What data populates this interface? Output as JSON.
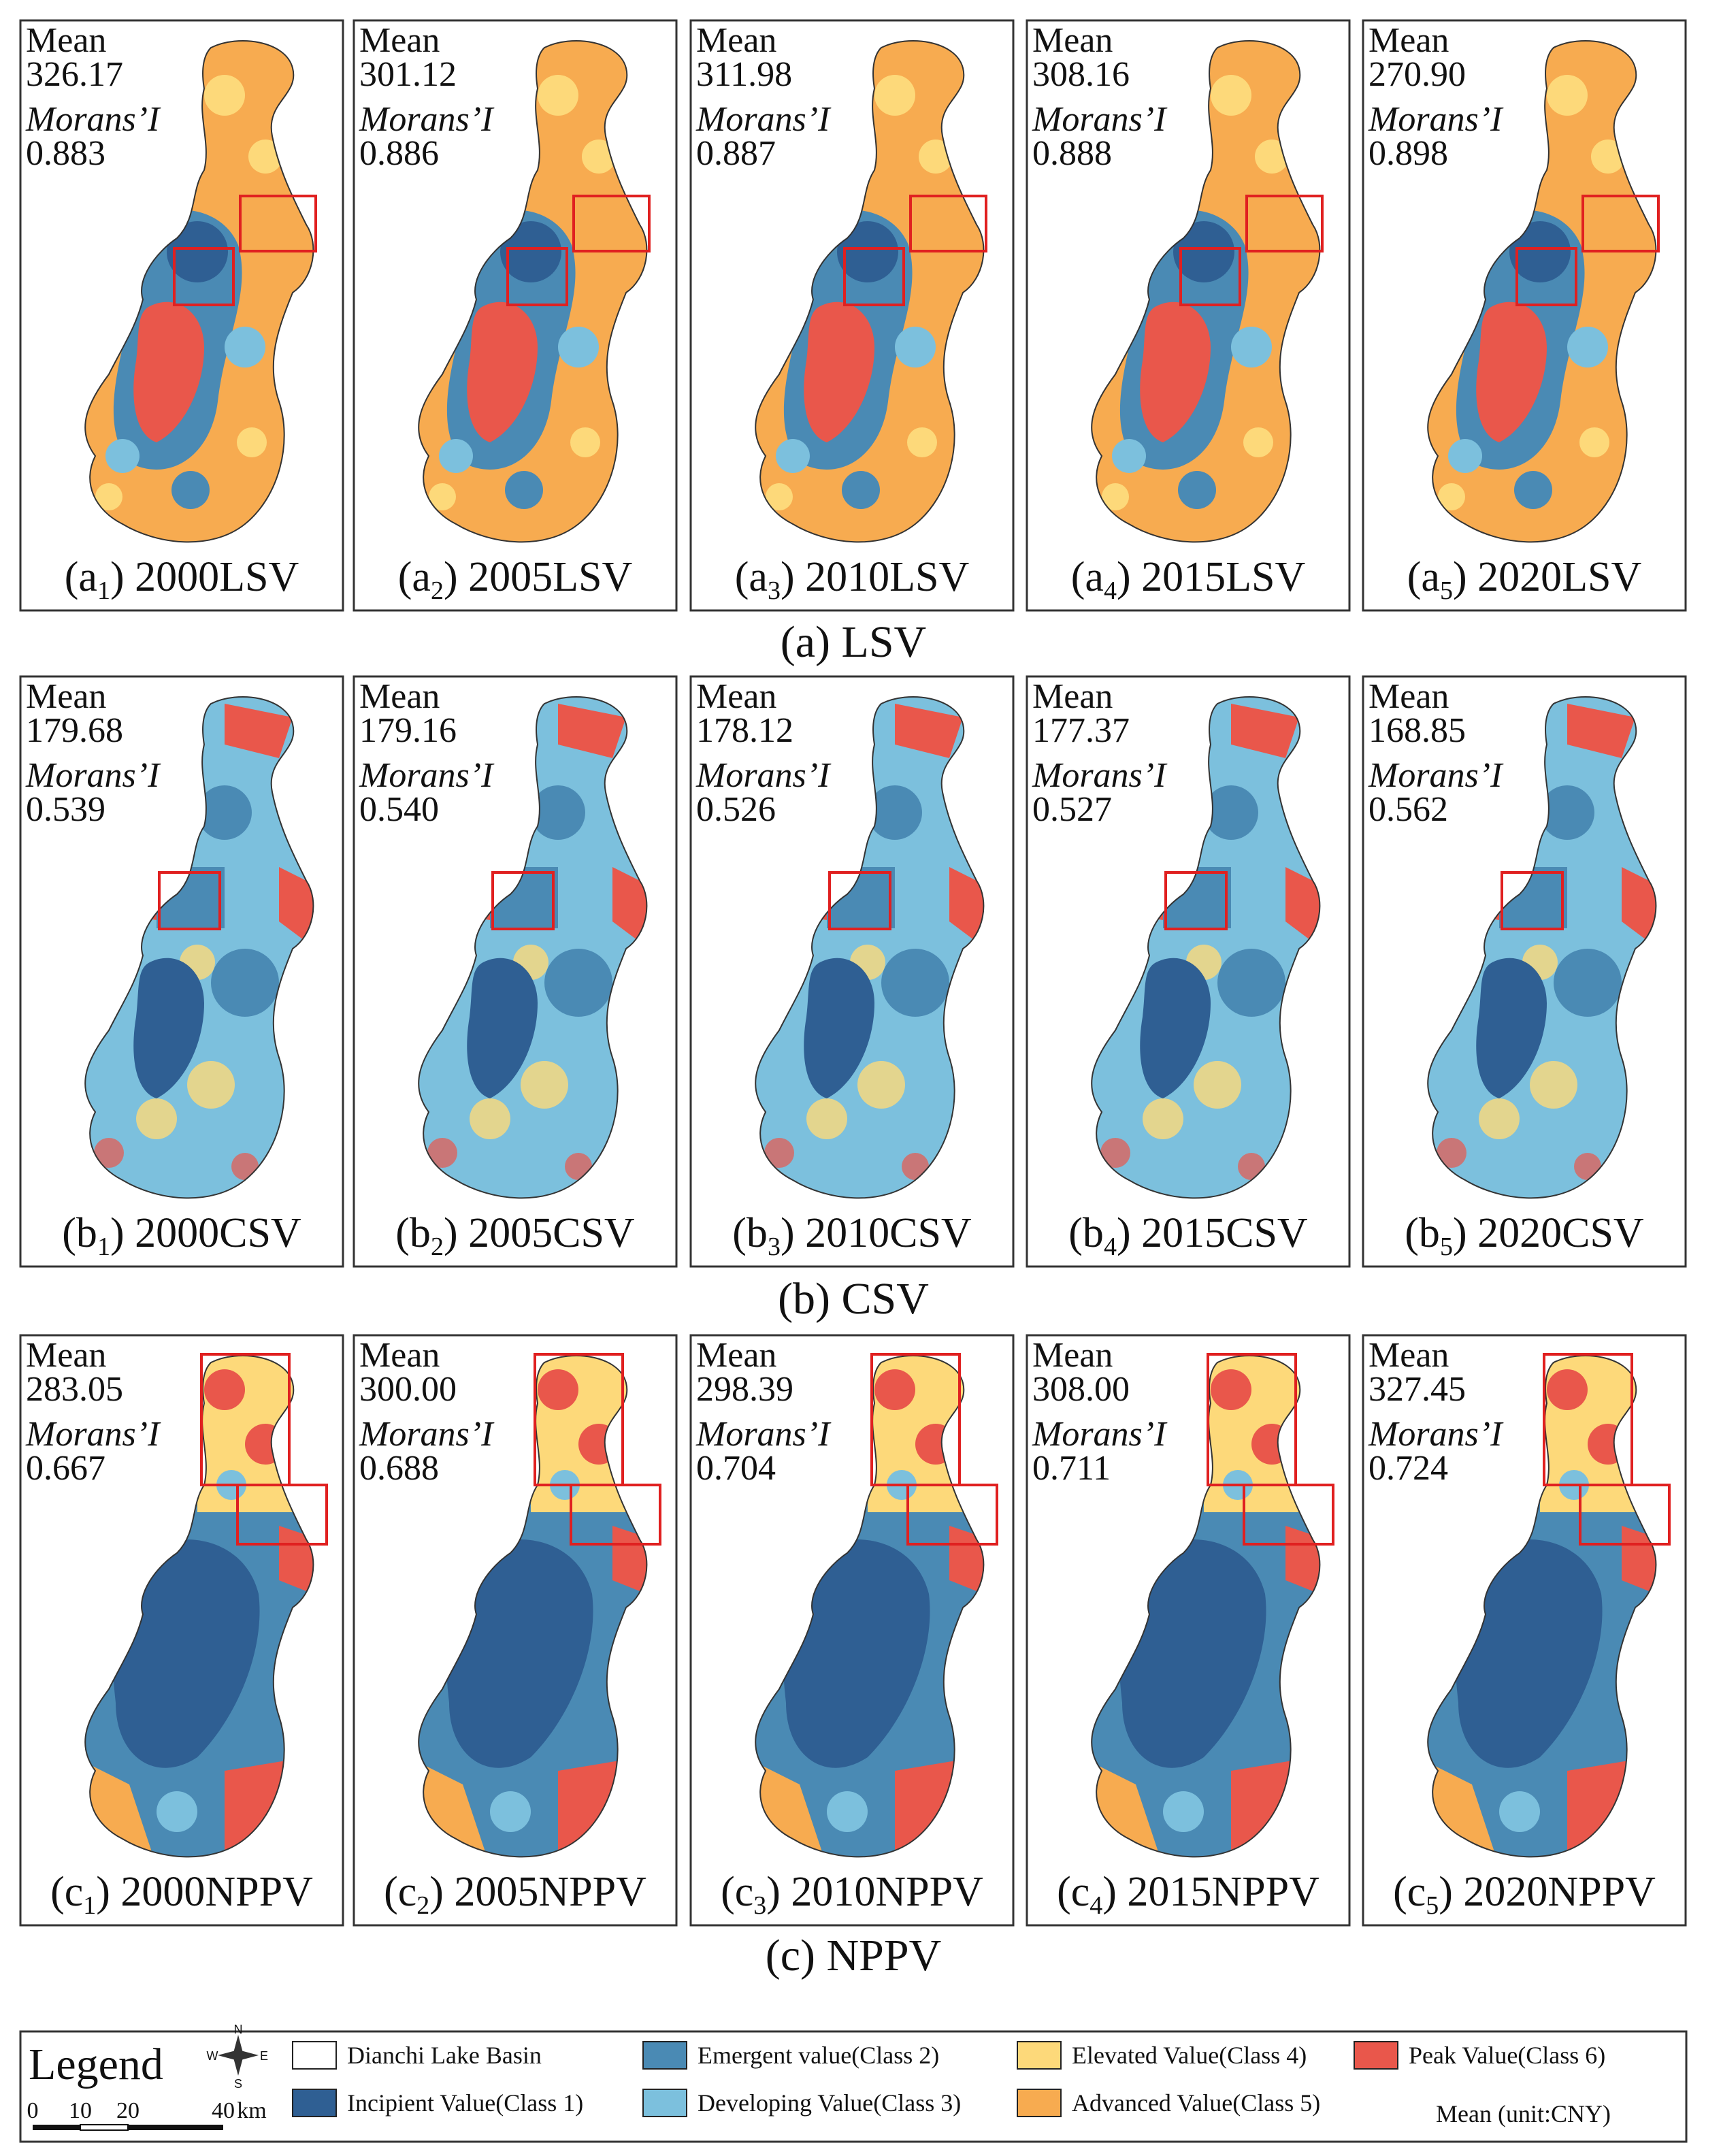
{
  "mean_label": "Mean",
  "morans_label": "Morans’I",
  "rows": [
    {
      "title": "(a) LSV",
      "panels": [
        {
          "caption": [
            "(a",
            "1",
            ") 2000LSV"
          ],
          "mean": "326.17",
          "morans": "0.883"
        },
        {
          "caption": [
            "(a",
            "2",
            ") 2005LSV"
          ],
          "mean": "301.12",
          "morans": "0.886"
        },
        {
          "caption": [
            "(a",
            "3",
            ") 2010LSV"
          ],
          "mean": "311.98",
          "morans": "0.887"
        },
        {
          "caption": [
            "(a",
            "4",
            ") 2015LSV"
          ],
          "mean": "308.16",
          "morans": "0.888"
        },
        {
          "caption": [
            "(a",
            "5",
            ") 2020LSV"
          ],
          "mean": "270.90",
          "morans": "0.898"
        }
      ]
    },
    {
      "title": "(b) CSV",
      "panels": [
        {
          "caption": [
            "(b",
            "1",
            ") 2000CSV"
          ],
          "mean": "179.68",
          "morans": "0.539"
        },
        {
          "caption": [
            "(b",
            "2",
            ") 2005CSV"
          ],
          "mean": "179.16",
          "morans": "0.540"
        },
        {
          "caption": [
            "(b",
            "3",
            ") 2010CSV"
          ],
          "mean": "178.12",
          "morans": "0.526"
        },
        {
          "caption": [
            "(b",
            "4",
            ") 2015CSV"
          ],
          "mean": "177.37",
          "morans": "0.527"
        },
        {
          "caption": [
            "(b",
            "5",
            ") 2020CSV"
          ],
          "mean": "168.85",
          "morans": "0.562"
        }
      ]
    },
    {
      "title": "(c) NPPV",
      "panels": [
        {
          "caption": [
            "(c",
            "1",
            ") 2000NPPV"
          ],
          "mean": "283.05",
          "morans": "0.667"
        },
        {
          "caption": [
            "(c",
            "2",
            ") 2005NPPV"
          ],
          "mean": "300.00",
          "morans": "0.688"
        },
        {
          "caption": [
            "(c",
            "3",
            ") 2010NPPV"
          ],
          "mean": "298.39",
          "morans": "0.704"
        },
        {
          "caption": [
            "(c",
            "4",
            ") 2015NPPV"
          ],
          "mean": "308.00",
          "morans": "0.711"
        },
        {
          "caption": [
            "(c",
            "5",
            ") 2020NPPV"
          ],
          "mean": "327.45",
          "morans": "0.724"
        }
      ]
    }
  ],
  "legend": {
    "title": "Legend",
    "compass": [
      "N",
      "S",
      "W",
      "E"
    ],
    "scale": [
      "0",
      "10",
      "20",
      "40",
      "km"
    ],
    "items": [
      {
        "label": "Dianchi Lake Basin",
        "color": "#ffffff"
      },
      {
        "label": "Incipient Value(Class 1)",
        "color": "#2f5f93"
      },
      {
        "label": "Emergent value(Class 2)",
        "color": "#4a8ab4"
      },
      {
        "label": "Developing Value(Class 3)",
        "color": "#7cc0dd"
      },
      {
        "label": "Elevated Value(Class 4)",
        "color": "#fdd97a"
      },
      {
        "label": "Advanced Value(Class 5)",
        "color": "#f7ab50"
      },
      {
        "label": "Peak Value(Class 6)",
        "color": "#e9574b"
      }
    ],
    "unit_note": "Mean (unit:CNY)"
  }
}
